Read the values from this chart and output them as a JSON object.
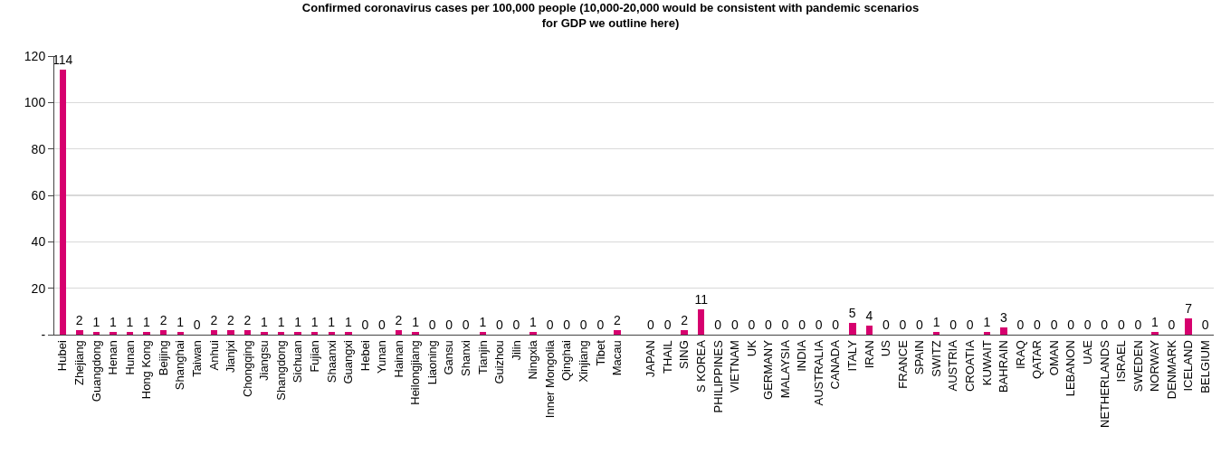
{
  "chart_data": {
    "type": "bar",
    "title": "Confirmed coronavirus cases per 100,000 people (10,000-20,000 would be consistent with pandemic scenarios for GDP we outline here)",
    "categories": [
      "Hubei",
      "Zhejiang",
      "Guangdong",
      "Henan",
      "Hunan",
      "Hong Kong",
      "Beijing",
      "Shanghai",
      "Taiwan",
      "Anhui",
      "Jianjxi",
      "Chongqing",
      "Jiangsu",
      "Shangdong",
      "Sichuan",
      "Fujian",
      "Shaanxi",
      "Guangxi",
      "Hebei",
      "Yunan",
      "Hainan",
      "Heilongjiang",
      "Liaoning",
      "Gansu",
      "Shanxi",
      "Tianjin",
      "Guizhou",
      "Jilin",
      "Ningxia",
      "Inner Mongolia",
      "Qinghai",
      "Xinjiang",
      "Tibet",
      "Macau",
      null,
      "JAPAN",
      "THAIL",
      "SING",
      "S KOREA",
      "PHILIPPINES",
      "VIETNAM",
      "UK",
      "GERMANY",
      "MALAYSIA",
      "INDIA",
      "AUSTRALIA",
      "CANADA",
      "ITALY",
      "IRAN",
      "US",
      "FRANCE",
      "SPAIN",
      "SWITZ",
      "AUSTRIA",
      "CROATIA",
      "KUWAIT",
      "BAHRAIN",
      "IRAQ",
      "QATAR",
      "OMAN",
      "LEBANON",
      "UAE",
      "NETHERLANDS",
      "ISRAEL",
      "SWEDEN",
      "NORWAY",
      "DENMARK",
      "ICELAND",
      "BELGIUM"
    ],
    "values": [
      114,
      2,
      1,
      1,
      1,
      1,
      2,
      1,
      0,
      2,
      2,
      2,
      1,
      1,
      1,
      1,
      1,
      1,
      0,
      0,
      2,
      1,
      0,
      0,
      0,
      1,
      0,
      0,
      1,
      0,
      0,
      0,
      0,
      2,
      null,
      0,
      0,
      2,
      11,
      0,
      0,
      0,
      0,
      0,
      0,
      0,
      0,
      5,
      4,
      0,
      0,
      0,
      1,
      0,
      0,
      1,
      3,
      0,
      0,
      0,
      0,
      0,
      0,
      0,
      0,
      1,
      0,
      7,
      0
    ],
    "color": "#d6006e",
    "ylim": [
      0,
      120
    ],
    "yticks": [
      {
        "value": 0,
        "label": "-"
      },
      20,
      40,
      60,
      80,
      100,
      120
    ],
    "grid": "y",
    "data_labels": true
  }
}
